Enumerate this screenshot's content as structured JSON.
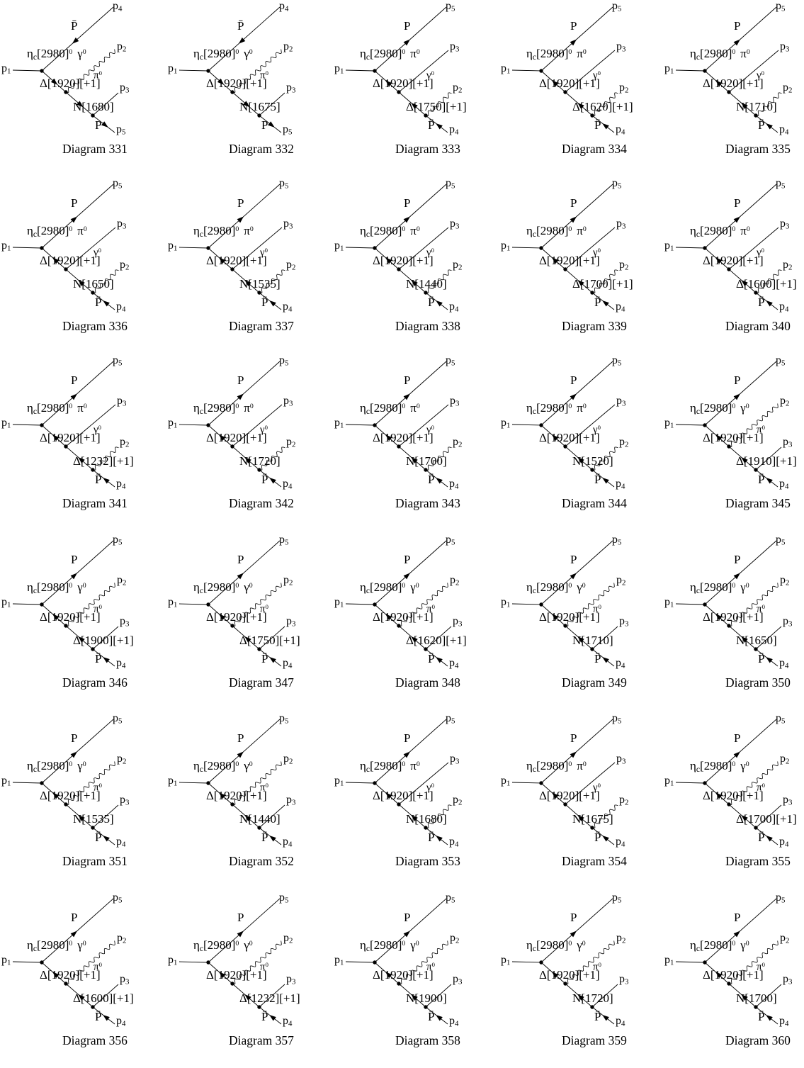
{
  "page": {
    "background": "#ffffff",
    "ink": "#000000"
  },
  "shared": {
    "incoming_momentum": "p1",
    "eta": {
      "symbol": "η",
      "subscript": "c",
      "mass": "[2980]",
      "superscript": "0"
    },
    "internal1": "Δ[1920][+1]"
  },
  "diagrams": [
    {
      "caption": "Diagram 331",
      "top_particle": "P̄",
      "top_momentum": "p4",
      "v2_particle": "γ0",
      "v2_momentum": "p2",
      "internal2": "N[1680]",
      "v3_particle": "π0",
      "v3_momentum": "p3",
      "bottom_particle": "P",
      "bottom_momentum": "p5",
      "forward": true
    },
    {
      "caption": "Diagram 332",
      "top_particle": "P̄",
      "top_momentum": "p4",
      "v2_particle": "γ0",
      "v2_momentum": "p2",
      "internal2": "N[1675]",
      "v3_particle": "π0",
      "v3_momentum": "p3",
      "bottom_particle": "P",
      "bottom_momentum": "p5",
      "forward": true
    },
    {
      "caption": "Diagram 333",
      "top_particle": "P",
      "top_momentum": "p5",
      "v2_particle": "π0",
      "v2_momentum": "p3",
      "internal2": "Δ[1750][+1]",
      "v3_particle": "γ0",
      "v3_momentum": "p2",
      "bottom_particle": "P̄",
      "bottom_momentum": "p4",
      "forward": false
    },
    {
      "caption": "Diagram 334",
      "top_particle": "P",
      "top_momentum": "p5",
      "v2_particle": "π0",
      "v2_momentum": "p3",
      "internal2": "Δ[1620][+1]",
      "v3_particle": "γ0",
      "v3_momentum": "p2",
      "bottom_particle": "P̄",
      "bottom_momentum": "p4",
      "forward": false
    },
    {
      "caption": "Diagram 335",
      "top_particle": "P",
      "top_momentum": "p5",
      "v2_particle": "π0",
      "v2_momentum": "p3",
      "internal2": "N[1710]",
      "v3_particle": "γ0",
      "v3_momentum": "p2",
      "bottom_particle": "P̄",
      "bottom_momentum": "p4",
      "forward": false
    },
    {
      "caption": "Diagram 336",
      "top_particle": "P",
      "top_momentum": "p5",
      "v2_particle": "π0",
      "v2_momentum": "p3",
      "internal2": "N[1650]",
      "v3_particle": "γ0",
      "v3_momentum": "p2",
      "bottom_particle": "P̄",
      "bottom_momentum": "p4",
      "forward": false
    },
    {
      "caption": "Diagram 337",
      "top_particle": "P",
      "top_momentum": "p5",
      "v2_particle": "π0",
      "v2_momentum": "p3",
      "internal2": "N[1535]",
      "v3_particle": "γ0",
      "v3_momentum": "p2",
      "bottom_particle": "P̄",
      "bottom_momentum": "p4",
      "forward": false
    },
    {
      "caption": "Diagram 338",
      "top_particle": "P",
      "top_momentum": "p5",
      "v2_particle": "π0",
      "v2_momentum": "p3",
      "internal2": "N[1440]",
      "v3_particle": "γ0",
      "v3_momentum": "p2",
      "bottom_particle": "P̄",
      "bottom_momentum": "p4",
      "forward": false
    },
    {
      "caption": "Diagram 339",
      "top_particle": "P",
      "top_momentum": "p5",
      "v2_particle": "π0",
      "v2_momentum": "p3",
      "internal2": "Δ[1700][+1]",
      "v3_particle": "γ0",
      "v3_momentum": "p2",
      "bottom_particle": "P̄",
      "bottom_momentum": "p4",
      "forward": false
    },
    {
      "caption": "Diagram 340",
      "top_particle": "P",
      "top_momentum": "p5",
      "v2_particle": "π0",
      "v2_momentum": "p3",
      "internal2": "Δ[1600][+1]",
      "v3_particle": "γ0",
      "v3_momentum": "p2",
      "bottom_particle": "P̄",
      "bottom_momentum": "p4",
      "forward": false
    },
    {
      "caption": "Diagram 341",
      "top_particle": "P",
      "top_momentum": "p5",
      "v2_particle": "π0",
      "v2_momentum": "p3",
      "internal2": "Δ[1232][+1]",
      "v3_particle": "γ0",
      "v3_momentum": "p2",
      "bottom_particle": "P̄",
      "bottom_momentum": "p4",
      "forward": false
    },
    {
      "caption": "Diagram 342",
      "top_particle": "P",
      "top_momentum": "p5",
      "v2_particle": "π0",
      "v2_momentum": "p3",
      "internal2": "N[1720]",
      "v3_particle": "γ0",
      "v3_momentum": "p2",
      "bottom_particle": "P̄",
      "bottom_momentum": "p4",
      "forward": false
    },
    {
      "caption": "Diagram 343",
      "top_particle": "P",
      "top_momentum": "p5",
      "v2_particle": "π0",
      "v2_momentum": "p3",
      "internal2": "N[1700]",
      "v3_particle": "γ0",
      "v3_momentum": "p2",
      "bottom_particle": "P̄",
      "bottom_momentum": "p4",
      "forward": false
    },
    {
      "caption": "Diagram 344",
      "top_particle": "P",
      "top_momentum": "p5",
      "v2_particle": "π0",
      "v2_momentum": "p3",
      "internal2": "N[1520]",
      "v3_particle": "γ0",
      "v3_momentum": "p2",
      "bottom_particle": "P̄",
      "bottom_momentum": "p4",
      "forward": false
    },
    {
      "caption": "Diagram 345",
      "top_particle": "P",
      "top_momentum": "p5",
      "v2_particle": "γ0",
      "v2_momentum": "p2",
      "internal2": "Δ[1910][+1]",
      "v3_particle": "π0",
      "v3_momentum": "p3",
      "bottom_particle": "P̄",
      "bottom_momentum": "p4",
      "forward": false
    },
    {
      "caption": "Diagram 346",
      "top_particle": "P",
      "top_momentum": "p5",
      "v2_particle": "γ0",
      "v2_momentum": "p2",
      "internal2": "Δ[1900][+1]",
      "v3_particle": "π0",
      "v3_momentum": "p3",
      "bottom_particle": "P̄",
      "bottom_momentum": "p4",
      "forward": false
    },
    {
      "caption": "Diagram 347",
      "top_particle": "P",
      "top_momentum": "p5",
      "v2_particle": "γ0",
      "v2_momentum": "p2",
      "internal2": "Δ[1750][+1]",
      "v3_particle": "π0",
      "v3_momentum": "p3",
      "bottom_particle": "P̄",
      "bottom_momentum": "p4",
      "forward": false
    },
    {
      "caption": "Diagram 348",
      "top_particle": "P",
      "top_momentum": "p5",
      "v2_particle": "γ0",
      "v2_momentum": "p2",
      "internal2": "Δ[1620][+1]",
      "v3_particle": "π0",
      "v3_momentum": "p3",
      "bottom_particle": "P̄",
      "bottom_momentum": "p4",
      "forward": false
    },
    {
      "caption": "Diagram 349",
      "top_particle": "P",
      "top_momentum": "p5",
      "v2_particle": "γ0",
      "v2_momentum": "p2",
      "internal2": "N[1710]",
      "v3_particle": "π0",
      "v3_momentum": "p3",
      "bottom_particle": "P̄",
      "bottom_momentum": "p4",
      "forward": false
    },
    {
      "caption": "Diagram 350",
      "top_particle": "P",
      "top_momentum": "p5",
      "v2_particle": "γ0",
      "v2_momentum": "p2",
      "internal2": "N[1650]",
      "v3_particle": "π0",
      "v3_momentum": "p3",
      "bottom_particle": "P̄",
      "bottom_momentum": "p4",
      "forward": false
    },
    {
      "caption": "Diagram 351",
      "top_particle": "P",
      "top_momentum": "p5",
      "v2_particle": "γ0",
      "v2_momentum": "p2",
      "internal2": "N[1535]",
      "v3_particle": "π0",
      "v3_momentum": "p3",
      "bottom_particle": "P̄",
      "bottom_momentum": "p4",
      "forward": false
    },
    {
      "caption": "Diagram 352",
      "top_particle": "P",
      "top_momentum": "p5",
      "v2_particle": "γ0",
      "v2_momentum": "p2",
      "internal2": "N[1440]",
      "v3_particle": "π0",
      "v3_momentum": "p3",
      "bottom_particle": "P̄",
      "bottom_momentum": "p4",
      "forward": false
    },
    {
      "caption": "Diagram 353",
      "top_particle": "P",
      "top_momentum": "p5",
      "v2_particle": "π0",
      "v2_momentum": "p3",
      "internal2": "N[1680]",
      "v3_particle": "γ0",
      "v3_momentum": "p2",
      "bottom_particle": "P̄",
      "bottom_momentum": "p4",
      "forward": false
    },
    {
      "caption": "Diagram 354",
      "top_particle": "P",
      "top_momentum": "p5",
      "v2_particle": "π0",
      "v2_momentum": "p3",
      "internal2": "N[1675]",
      "v3_particle": "γ0",
      "v3_momentum": "p2",
      "bottom_particle": "P̄",
      "bottom_momentum": "p4",
      "forward": false
    },
    {
      "caption": "Diagram 355",
      "top_particle": "P",
      "top_momentum": "p5",
      "v2_particle": "γ0",
      "v2_momentum": "p2",
      "internal2": "Δ[1700][+1]",
      "v3_particle": "π0",
      "v3_momentum": "p3",
      "bottom_particle": "P̄",
      "bottom_momentum": "p4",
      "forward": false
    },
    {
      "caption": "Diagram 356",
      "top_particle": "P",
      "top_momentum": "p5",
      "v2_particle": "γ0",
      "v2_momentum": "p2",
      "internal2": "Δ[1600][+1]",
      "v3_particle": "π0",
      "v3_momentum": "p3",
      "bottom_particle": "P̄",
      "bottom_momentum": "p4",
      "forward": false
    },
    {
      "caption": "Diagram 357",
      "top_particle": "P",
      "top_momentum": "p5",
      "v2_particle": "γ0",
      "v2_momentum": "p2",
      "internal2": "Δ[1232][+1]",
      "v3_particle": "π0",
      "v3_momentum": "p3",
      "bottom_particle": "P̄",
      "bottom_momentum": "p4",
      "forward": false
    },
    {
      "caption": "Diagram 358",
      "top_particle": "P",
      "top_momentum": "p5",
      "v2_particle": "γ0",
      "v2_momentum": "p2",
      "internal2": "N[1900]",
      "v3_particle": "π0",
      "v3_momentum": "p3",
      "bottom_particle": "P̄",
      "bottom_momentum": "p4",
      "forward": false
    },
    {
      "caption": "Diagram 359",
      "top_particle": "P",
      "top_momentum": "p5",
      "v2_particle": "γ0",
      "v2_momentum": "p2",
      "internal2": "N[1720]",
      "v3_particle": "π0",
      "v3_momentum": "p3",
      "bottom_particle": "P̄",
      "bottom_momentum": "p4",
      "forward": false
    },
    {
      "caption": "Diagram 360",
      "top_particle": "P",
      "top_momentum": "p5",
      "v2_particle": "γ0",
      "v2_momentum": "p2",
      "internal2": "N[1700]",
      "v3_particle": "π0",
      "v3_momentum": "p3",
      "bottom_particle": "P̄",
      "bottom_momentum": "p4",
      "forward": false
    }
  ]
}
